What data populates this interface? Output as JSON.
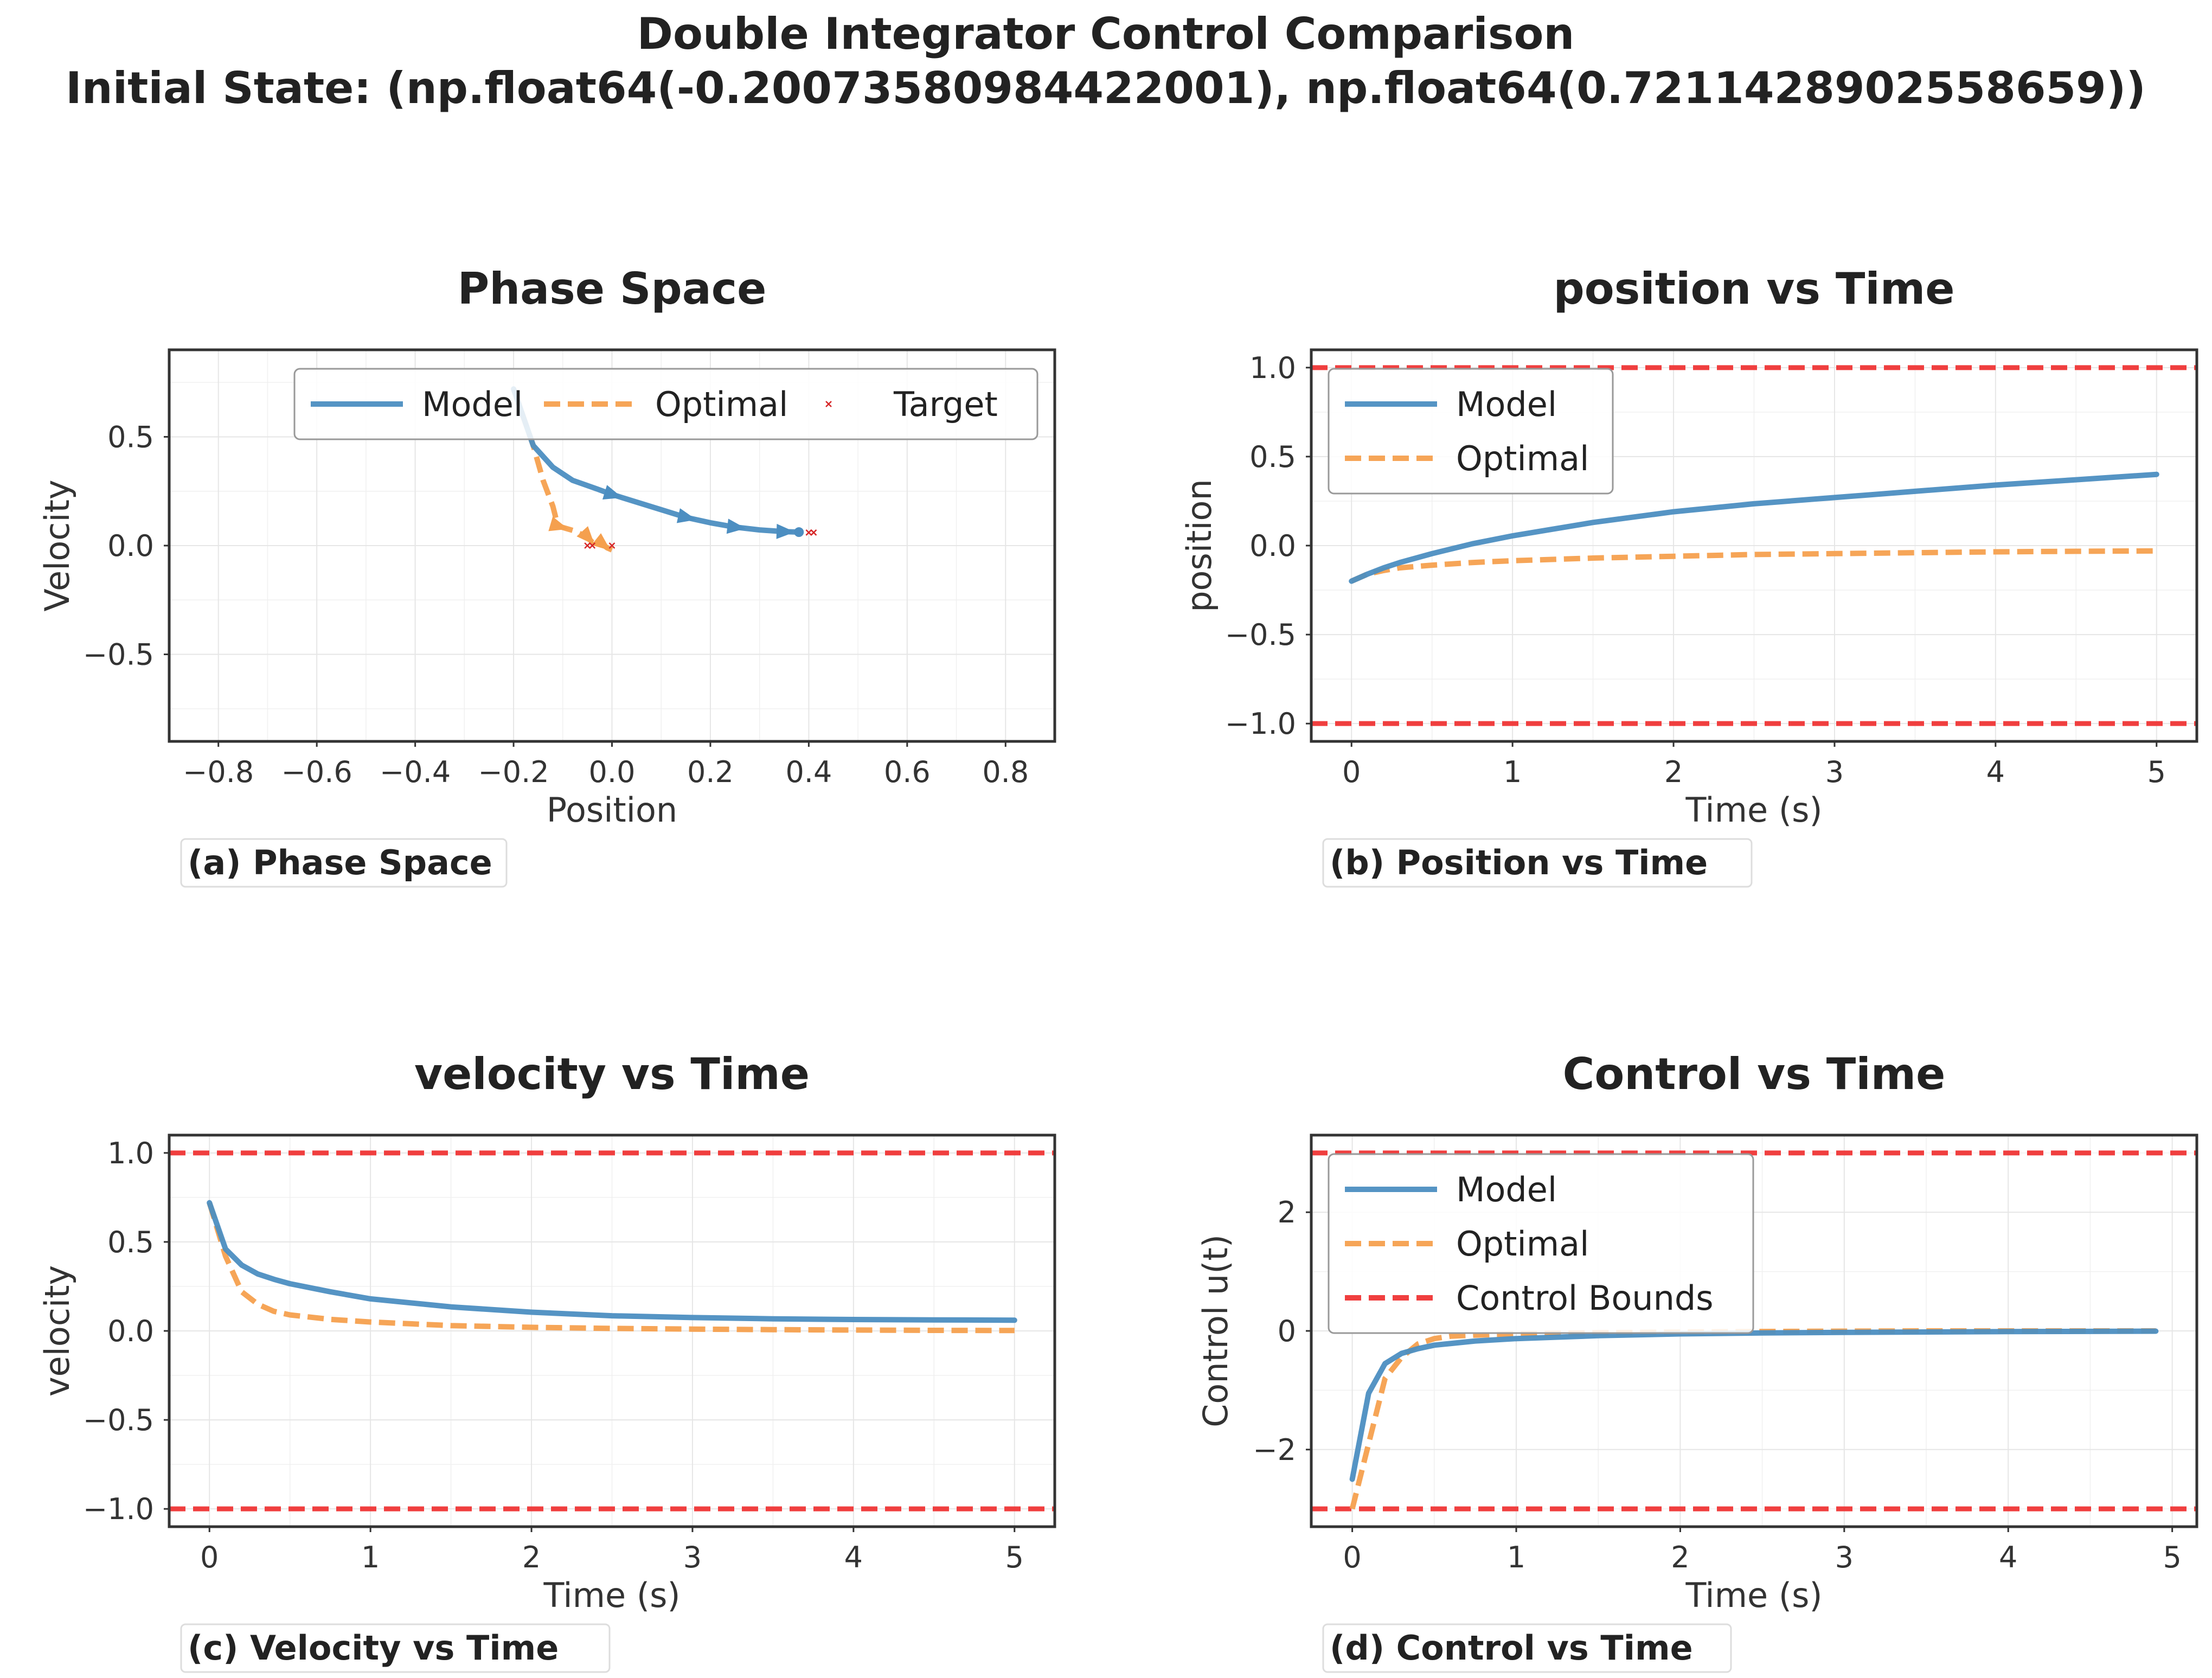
{
  "figure": {
    "title_line1": "Double Integrator Control Comparison",
    "title_line2": "Initial State: (np.float64(-0.20073580984422001), np.float64(0.7211428902558659))"
  },
  "colors": {
    "model": "#4c8ec1",
    "optimal": "#f5a04e",
    "bounds": "#ef3535",
    "target": "#d62728"
  },
  "chart_data": [
    {
      "id": "a",
      "type": "line",
      "title": "Phase Space",
      "caption": "(a) Phase Space",
      "xlabel": "Position",
      "ylabel": "Velocity",
      "xlim": [
        -0.9,
        0.9
      ],
      "ylim": [
        -0.9,
        0.9
      ],
      "xticks": [
        -0.8,
        -0.6,
        -0.4,
        -0.2,
        0.0,
        0.2,
        0.4,
        0.6,
        0.8
      ],
      "yticks": [
        -0.5,
        0.0,
        0.5
      ],
      "grid": true,
      "legend": {
        "placement": "upper-right",
        "columns": 3,
        "entries": [
          "Model",
          "Optimal",
          "Target"
        ]
      },
      "series": [
        {
          "name": "Model",
          "style": "solid",
          "color_key": "model",
          "x": [
            -0.2,
            -0.16,
            -0.12,
            -0.08,
            -0.03,
            0.0,
            0.05,
            0.1,
            0.15,
            0.2,
            0.25,
            0.3,
            0.35,
            0.38
          ],
          "y": [
            0.72,
            0.46,
            0.36,
            0.3,
            0.26,
            0.235,
            0.2,
            0.165,
            0.13,
            0.105,
            0.085,
            0.072,
            0.064,
            0.062
          ]
        },
        {
          "name": "Optimal",
          "style": "dashed",
          "color_key": "optimal",
          "x": [
            -0.2,
            -0.16,
            -0.14,
            -0.12,
            -0.11,
            -0.08,
            -0.05,
            -0.04,
            -0.02,
            -0.01,
            0.0
          ],
          "y": [
            0.72,
            0.46,
            0.3,
            0.18,
            0.09,
            0.07,
            0.04,
            0.015,
            0.008,
            -0.01,
            -0.02
          ]
        },
        {
          "name": "Target",
          "style": "marker",
          "color_key": "target",
          "x": [
            -0.05,
            -0.04,
            0.0,
            0.4,
            0.41
          ],
          "y": [
            0.0,
            0.0,
            0.0,
            0.06,
            0.06
          ]
        }
      ]
    },
    {
      "id": "b",
      "type": "line",
      "title": "position vs Time",
      "caption": "(b) Position vs Time",
      "xlabel": "Time (s)",
      "ylabel": "position",
      "xlim": [
        -0.25,
        5.25
      ],
      "ylim": [
        -1.1,
        1.1
      ],
      "xticks": [
        0,
        1,
        2,
        3,
        4,
        5
      ],
      "yticks": [
        -1.0,
        -0.5,
        0.0,
        0.5,
        1.0
      ],
      "hlines": [
        -1.0,
        1.0
      ],
      "grid": true,
      "legend": {
        "placement": "upper-left",
        "columns": 1,
        "entries": [
          "Model",
          "Optimal"
        ]
      },
      "series": [
        {
          "name": "Model",
          "style": "solid",
          "color_key": "model",
          "x": [
            0,
            0.1,
            0.2,
            0.3,
            0.5,
            0.75,
            1.0,
            1.5,
            2.0,
            2.5,
            3.0,
            3.5,
            4.0,
            4.5,
            5.0
          ],
          "y": [
            -0.2,
            -0.16,
            -0.125,
            -0.095,
            -0.045,
            0.01,
            0.055,
            0.13,
            0.19,
            0.235,
            0.27,
            0.305,
            0.34,
            0.37,
            0.4
          ]
        },
        {
          "name": "Optimal",
          "style": "dashed",
          "color_key": "optimal",
          "x": [
            0,
            0.1,
            0.2,
            0.3,
            0.5,
            0.75,
            1.0,
            1.5,
            2.0,
            2.5,
            3.0,
            3.5,
            4.0,
            4.5,
            5.0
          ],
          "y": [
            -0.2,
            -0.16,
            -0.14,
            -0.125,
            -0.11,
            -0.095,
            -0.085,
            -0.07,
            -0.06,
            -0.05,
            -0.045,
            -0.04,
            -0.035,
            -0.032,
            -0.03
          ]
        }
      ]
    },
    {
      "id": "c",
      "type": "line",
      "title": "velocity vs Time",
      "caption": "(c) Velocity vs Time",
      "xlabel": "Time (s)",
      "ylabel": "velocity",
      "xlim": [
        -0.25,
        5.25
      ],
      "ylim": [
        -1.1,
        1.1
      ],
      "xticks": [
        0,
        1,
        2,
        3,
        4,
        5
      ],
      "yticks": [
        -1.0,
        -0.5,
        0.0,
        0.5,
        1.0
      ],
      "hlines": [
        -1.0,
        1.0
      ],
      "grid": true,
      "legend": {
        "placement": "none",
        "columns": 1,
        "entries": []
      },
      "series": [
        {
          "name": "Model",
          "style": "solid",
          "color_key": "model",
          "x": [
            0,
            0.1,
            0.2,
            0.3,
            0.4,
            0.5,
            0.75,
            1.0,
            1.5,
            2.0,
            2.5,
            3.0,
            3.5,
            4.0,
            4.5,
            5.0
          ],
          "y": [
            0.72,
            0.46,
            0.37,
            0.32,
            0.29,
            0.265,
            0.22,
            0.18,
            0.135,
            0.105,
            0.085,
            0.075,
            0.068,
            0.064,
            0.062,
            0.06
          ]
        },
        {
          "name": "Optimal",
          "style": "dashed",
          "color_key": "optimal",
          "x": [
            0,
            0.1,
            0.2,
            0.3,
            0.4,
            0.5,
            0.75,
            1.0,
            1.5,
            2.0,
            2.5,
            3.0,
            3.5,
            4.0,
            4.5,
            5.0
          ],
          "y": [
            0.72,
            0.42,
            0.22,
            0.15,
            0.11,
            0.09,
            0.065,
            0.05,
            0.03,
            0.02,
            0.014,
            0.01,
            0.007,
            0.005,
            0.003,
            0.002
          ]
        }
      ]
    },
    {
      "id": "d",
      "type": "line",
      "title": "Control vs Time",
      "caption": "(d) Control vs Time",
      "xlabel": "Time (s)",
      "ylabel": "Control u(t)",
      "xlim": [
        -0.25,
        5.15
      ],
      "ylim": [
        -3.3,
        3.3
      ],
      "xticks": [
        0,
        1,
        2,
        3,
        4,
        5
      ],
      "yticks": [
        -2,
        0,
        2
      ],
      "hlines": [
        -3.0,
        3.0
      ],
      "grid": true,
      "legend": {
        "placement": "upper-left",
        "columns": 1,
        "entries": [
          "Model",
          "Optimal",
          "Control Bounds"
        ]
      },
      "series": [
        {
          "name": "Model",
          "style": "solid",
          "color_key": "model",
          "x": [
            0,
            0.1,
            0.2,
            0.3,
            0.4,
            0.5,
            0.75,
            1.0,
            1.5,
            2.0,
            2.5,
            3.0,
            3.5,
            4.0,
            4.5,
            4.9
          ],
          "y": [
            -2.5,
            -1.05,
            -0.55,
            -0.38,
            -0.3,
            -0.24,
            -0.17,
            -0.13,
            -0.08,
            -0.05,
            -0.035,
            -0.025,
            -0.018,
            -0.012,
            -0.008,
            -0.005
          ]
        },
        {
          "name": "Optimal",
          "style": "dashed",
          "color_key": "optimal",
          "x": [
            0,
            0.1,
            0.2,
            0.3,
            0.4,
            0.5,
            0.6,
            0.75,
            1.0,
            1.5,
            2.0,
            2.5,
            3.0,
            3.5,
            4.0,
            4.5,
            4.9
          ],
          "y": [
            -3.0,
            -1.9,
            -0.8,
            -0.45,
            -0.22,
            -0.13,
            -0.09,
            -0.07,
            -0.05,
            -0.03,
            -0.02,
            -0.01,
            -0.005,
            0.0,
            0.0,
            0.0,
            0.0
          ]
        }
      ]
    }
  ]
}
